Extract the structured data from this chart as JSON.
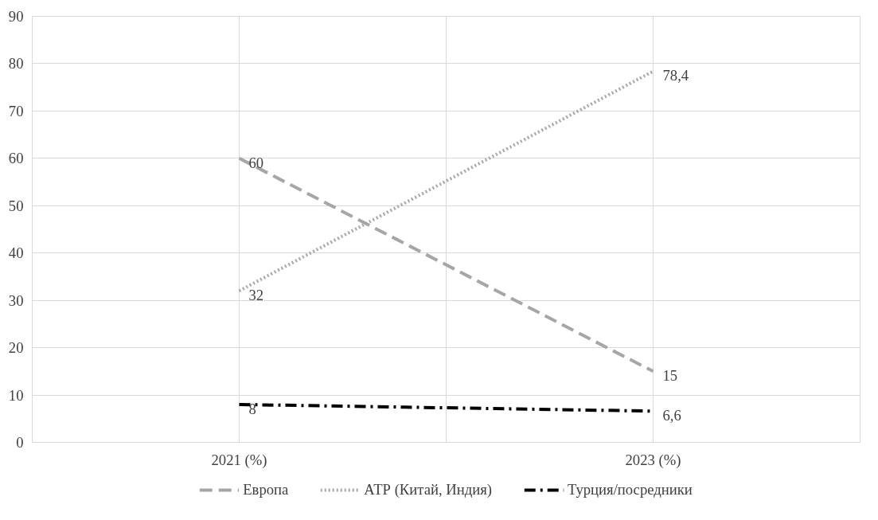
{
  "chart_data": {
    "type": "line",
    "categories": [
      "2021 (%)",
      "2023 (%)"
    ],
    "series": [
      {
        "name": "Европа",
        "color": "#a6a6a6",
        "line_style": "dashed",
        "values": [
          60,
          15
        ],
        "value_labels": [
          "60",
          "15"
        ]
      },
      {
        "name": "АТР (Китай, Индия)",
        "color": "#a6a6a6",
        "line_style": "dotted",
        "values": [
          32,
          78.4
        ],
        "value_labels": [
          "32",
          "78,4"
        ]
      },
      {
        "name": "Турция/посредники",
        "color": "#000000",
        "line_style": "dashdot",
        "values": [
          8,
          6.6
        ],
        "value_labels": [
          "8",
          "6,6"
        ]
      }
    ],
    "ylim": [
      0,
      90
    ],
    "yticks": [
      0,
      10,
      20,
      30,
      40,
      50,
      60,
      70,
      80,
      90
    ],
    "grid": true,
    "legend": "bottom"
  }
}
